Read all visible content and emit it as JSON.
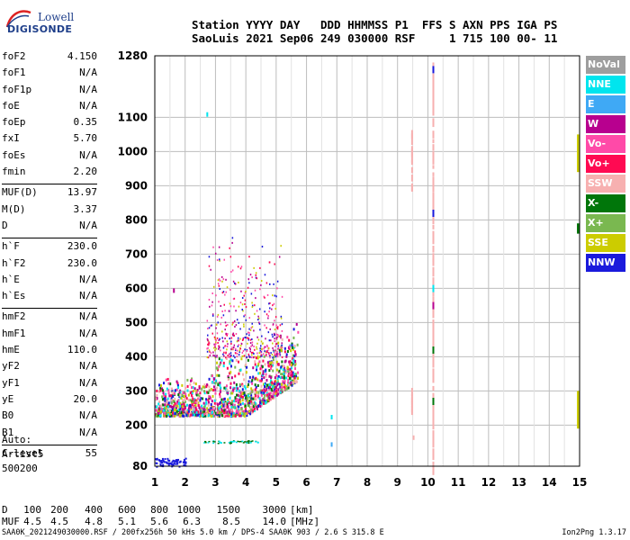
{
  "logo": {
    "line1": "Lowell",
    "line2": "DIGISONDE"
  },
  "header": {
    "line1": "Station YYYY DAY   DDD HHMMSS P1  FFS S AXN PPS IGA PS",
    "line2": "SaoLuis 2021 Sep06 249 030000 RSF     1 715 100 00- 11"
  },
  "params": [
    {
      "label": "foF2",
      "value": "4.150"
    },
    {
      "label": "foF1",
      "value": "N/A"
    },
    {
      "label": "foF1p",
      "value": "N/A"
    },
    {
      "label": "foE",
      "value": "N/A"
    },
    {
      "label": "foEp",
      "value": "0.35"
    },
    {
      "label": "fxI",
      "value": "5.70"
    },
    {
      "label": "foEs",
      "value": "N/A"
    },
    {
      "label": "fmin",
      "value": "2.20"
    },
    {
      "sep": true
    },
    {
      "label": "MUF(D)",
      "value": "13.97"
    },
    {
      "label": "M(D)",
      "value": "3.37"
    },
    {
      "label": "D",
      "value": "N/A"
    },
    {
      "sep": true
    },
    {
      "label": "h`F",
      "value": "230.0"
    },
    {
      "label": "h`F2",
      "value": "230.0"
    },
    {
      "label": "h`E",
      "value": "N/A"
    },
    {
      "label": "h`Es",
      "value": "N/A"
    },
    {
      "sep": true
    },
    {
      "label": "hmF2",
      "value": "N/A"
    },
    {
      "label": "hmF1",
      "value": "N/A"
    },
    {
      "label": "hmE",
      "value": "110.0"
    },
    {
      "label": "yF2",
      "value": "N/A"
    },
    {
      "label": "yF1",
      "value": "N/A"
    },
    {
      "label": "yE",
      "value": "20.0"
    },
    {
      "label": "B0",
      "value": "N/A"
    },
    {
      "label": "B1",
      "value": "N/A"
    },
    {
      "sep": true
    },
    {
      "label": "C-level",
      "value": "55"
    }
  ],
  "auto": {
    "line1": "Auto:",
    "line2": "Artist5",
    "line3": "500200"
  },
  "muf_table": {
    "d_label": "D",
    "d_values": [
      "100",
      "200",
      "400",
      "600",
      "800",
      "1000",
      "1500",
      "3000"
    ],
    "d_unit": "[km]",
    "muf_label": "MUF",
    "muf_values": [
      "4.5",
      "4.5",
      "4.8",
      "5.1",
      "5.6",
      "6.3",
      "8.5",
      "14.0"
    ],
    "muf_unit": "[MHz]"
  },
  "footer": "SAA0K_2021249030000.RSF / 200fx256h 50 kHs 5.0 km / DPS-4 SAA0K 903 / 2.6 S 315.8 E",
  "version": "Ion2Png 1.3.17",
  "legend": [
    {
      "label": "NoVal",
      "color": "#9e9e9e"
    },
    {
      "label": "NNE",
      "color": "#00e5ee"
    },
    {
      "label": "E",
      "color": "#3fa9f5"
    },
    {
      "label": "W",
      "color": "#b8008f"
    },
    {
      "label": "Vo-",
      "color": "#ff4aa8"
    },
    {
      "label": "Vo+",
      "color": "#ff0a52"
    },
    {
      "label": "SSW",
      "color": "#f7b0b0"
    },
    {
      "label": "X-",
      "color": "#00760a"
    },
    {
      "label": "X+",
      "color": "#7ab850"
    },
    {
      "label": "SSE",
      "color": "#cccc00"
    },
    {
      "label": "NNW",
      "color": "#1a1adc"
    }
  ],
  "chart_data": {
    "type": "scatter",
    "x_range": [
      1,
      15
    ],
    "y_range": [
      80,
      1280
    ],
    "x_ticks": [
      "1",
      "2",
      "3",
      "4",
      "5",
      "6",
      "7",
      "8",
      "9",
      "10",
      "11",
      "12",
      "13",
      "14",
      "15"
    ],
    "y_ticks": [
      "80",
      "200",
      "300",
      "400",
      "500",
      "600",
      "700",
      "800",
      "900",
      "1000",
      "1100",
      "1280"
    ],
    "grid": true,
    "trace_clusters": [
      {
        "name": "F-trace",
        "f_range": [
          1.0,
          5.7
        ],
        "h_range": [
          210,
          420
        ],
        "density": "high"
      },
      {
        "name": "F-spread",
        "f_range": [
          2.7,
          5.2
        ],
        "h_range": [
          400,
          760
        ],
        "density": "low"
      },
      {
        "name": "E-layer",
        "f_range": [
          1.0,
          4.4
        ],
        "h_range": [
          80,
          160
        ],
        "density": "medium"
      }
    ],
    "interference_columns": [
      {
        "f": 9.45,
        "h_ranges": [
          [
            250,
            330
          ],
          [
            900,
            1080
          ]
        ],
        "color": "#f7b0b0"
      },
      {
        "f": 10.15,
        "h_ranges": [
          [
            80,
            1280
          ]
        ],
        "color": "#f7b0b0"
      }
    ]
  }
}
